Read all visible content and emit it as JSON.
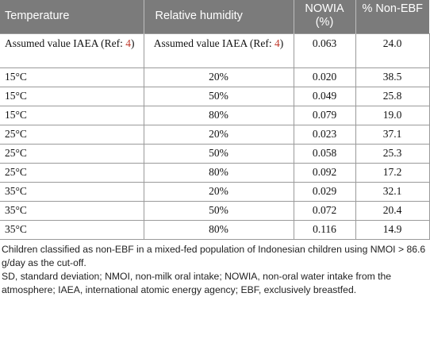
{
  "table": {
    "headers": [
      "Temperature",
      "Relative humidity",
      "NOWIA (%)",
      "% Non-EBF"
    ],
    "first_row": {
      "c1_text": "Assumed value IAEA (Ref: ",
      "c1_ref": "4",
      "c1_close": ")",
      "c2_text": "Assumed value IAEA (Ref: ",
      "c2_ref": "4",
      "c2_close": ")",
      "nowia": "0.063",
      "non_ebf": "24.0"
    },
    "rows": [
      {
        "temp": "15°C",
        "rh": "20%",
        "nowia": "0.020",
        "non_ebf": "38.5"
      },
      {
        "temp": "15°C",
        "rh": "50%",
        "nowia": "0.049",
        "non_ebf": "25.8"
      },
      {
        "temp": "15°C",
        "rh": "80%",
        "nowia": "0.079",
        "non_ebf": "19.0"
      },
      {
        "temp": "25°C",
        "rh": "20%",
        "nowia": "0.023",
        "non_ebf": "37.1"
      },
      {
        "temp": "25°C",
        "rh": "50%",
        "nowia": "0.058",
        "non_ebf": "25.3"
      },
      {
        "temp": "25°C",
        "rh": "80%",
        "nowia": "0.092",
        "non_ebf": "17.2"
      },
      {
        "temp": "35°C",
        "rh": "20%",
        "nowia": "0.029",
        "non_ebf": "32.1"
      },
      {
        "temp": "35°C",
        "rh": "50%",
        "nowia": "0.072",
        "non_ebf": "20.4"
      },
      {
        "temp": "35°C",
        "rh": "80%",
        "nowia": "0.116",
        "non_ebf": "14.9"
      }
    ]
  },
  "notes": [
    "Children classified as non-EBF in a mixed-fed population of Indonesian children using NMOI > 86.6 g/day as the cut-off.",
    "SD, standard deviation; NMOI, non-milk oral intake; NOWIA, non-oral water intake from the atmosphere; IAEA, international atomic energy agency; EBF, exclusively breastfed."
  ]
}
